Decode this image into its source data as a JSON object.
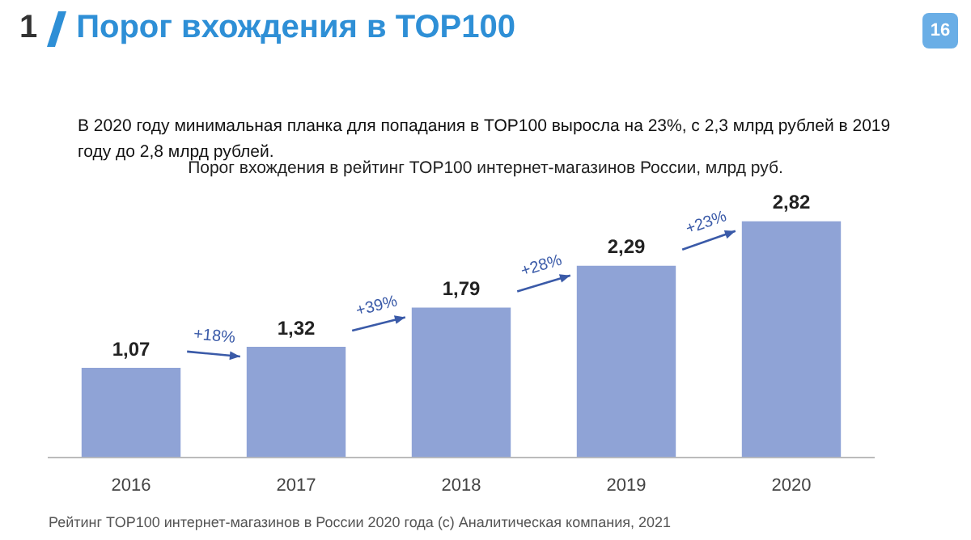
{
  "chart_data": {
    "type": "bar",
    "title": "Порог вхождения в TOP100",
    "subtitle": "В 2020 году минимальная планка для попадания в TOP100 выросла на 23%, с 2,3 млрд рублей в 2019 году до 2,8 млрд рублей.",
    "categories": [
      "2016",
      "2017",
      "2018",
      "2019",
      "2020"
    ],
    "values": [
      1.07,
      1.32,
      1.79,
      2.29,
      2.82
    ],
    "value_labels": [
      "1,07",
      "1,32",
      "1,79",
      "2,29",
      "2,82"
    ],
    "color": "#8fa3d6",
    "annotations": [
      "1",
      "16",
      "Порог вхождения в рейтинг TOP100 интернет-магазинов России, млрд руб.",
      "+18%",
      "+39%",
      "+28%",
      "+23%",
      "Рейтинг TOP100 интернет-магазинов в России 2020 года (с) Аналитическая компания, 2021"
    ],
    "legend": false,
    "grid": false
  }
}
